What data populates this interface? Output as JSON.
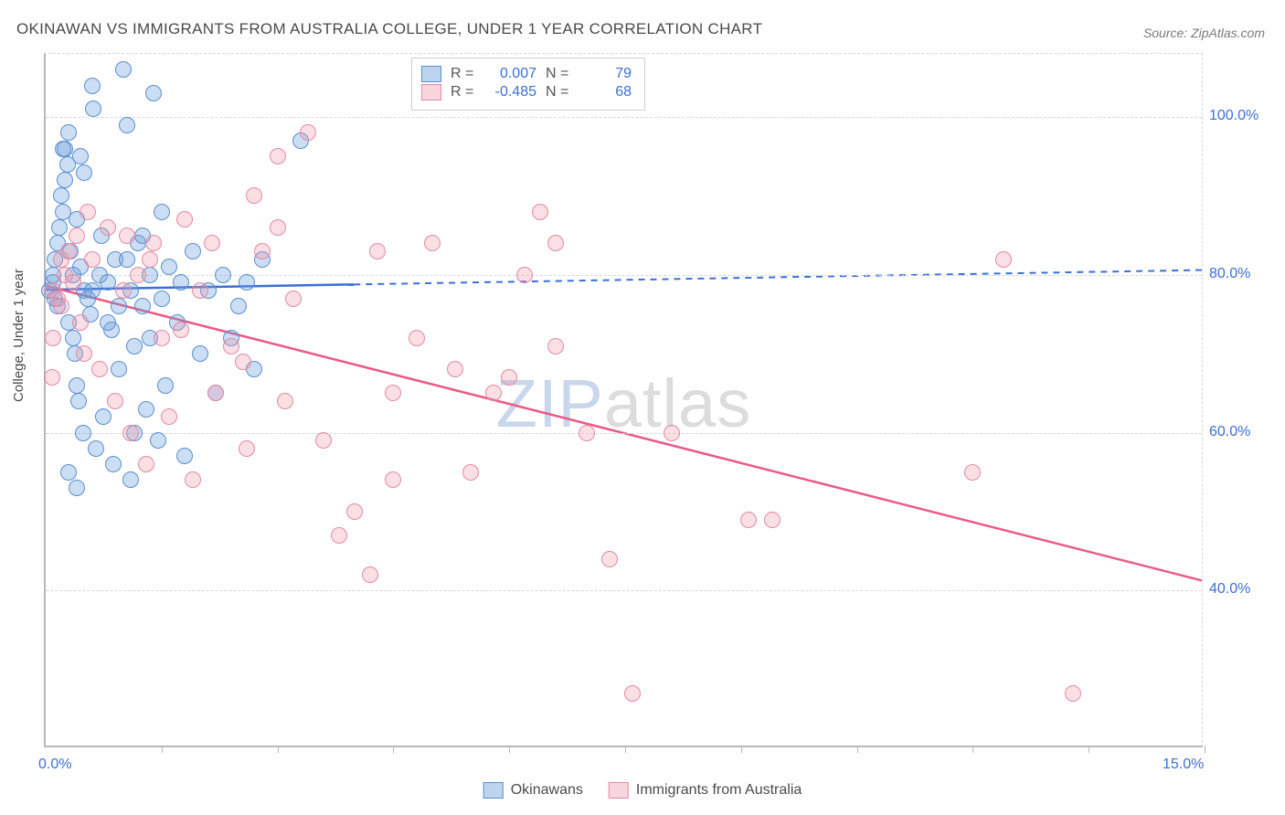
{
  "title": "OKINAWAN VS IMMIGRANTS FROM AUSTRALIA COLLEGE, UNDER 1 YEAR CORRELATION CHART",
  "source": "Source: ZipAtlas.com",
  "ylabel": "College, Under 1 year",
  "watermark_prefix": "ZIP",
  "watermark_suffix": "atlas",
  "chart": {
    "type": "scatter",
    "xlim": [
      0,
      15
    ],
    "ylim": [
      20,
      108
    ],
    "y_ticks": [
      40,
      60,
      80,
      100
    ],
    "y_tick_labels": [
      "40.0%",
      "60.0%",
      "80.0%",
      "100.0%"
    ],
    "x_ticks_minor": [
      1.5,
      3.0,
      4.5,
      6.0,
      7.5,
      9.0,
      10.5,
      12.0,
      13.5,
      15.0
    ],
    "x_tick_labels": {
      "0": "0.0%",
      "15": "15.0%"
    },
    "background_color": "#ffffff",
    "grid_color": "#d8d8d8",
    "axis_color": "#b8b8b8",
    "tick_label_color": "#3b6fd6",
    "series": [
      {
        "name": "Okinawans",
        "marker_color_fill": "rgba(108,160,220,0.35)",
        "marker_color_stroke": "#5a8fd0",
        "trend_color": "#3b6fd6",
        "R": "0.007",
        "N": "79",
        "trend_line": {
          "x1": 0,
          "y1": 78,
          "x2": 15,
          "y2": 80.5,
          "solid_until_x": 4.0
        },
        "points": [
          [
            0.05,
            78
          ],
          [
            0.1,
            79
          ],
          [
            0.1,
            80
          ],
          [
            0.12,
            77
          ],
          [
            0.12,
            82
          ],
          [
            0.15,
            76
          ],
          [
            0.15,
            84
          ],
          [
            0.18,
            86
          ],
          [
            0.2,
            90
          ],
          [
            0.22,
            88
          ],
          [
            0.25,
            92
          ],
          [
            0.25,
            96
          ],
          [
            0.28,
            94
          ],
          [
            0.3,
            98
          ],
          [
            0.3,
            74
          ],
          [
            0.32,
            83
          ],
          [
            0.35,
            72
          ],
          [
            0.38,
            70
          ],
          [
            0.4,
            87
          ],
          [
            0.4,
            66
          ],
          [
            0.42,
            64
          ],
          [
            0.45,
            81
          ],
          [
            0.48,
            60
          ],
          [
            0.5,
            78
          ],
          [
            0.55,
            77
          ],
          [
            0.58,
            75
          ],
          [
            0.6,
            104
          ],
          [
            0.62,
            101
          ],
          [
            0.65,
            58
          ],
          [
            0.7,
            80
          ],
          [
            0.72,
            85
          ],
          [
            0.75,
            62
          ],
          [
            0.8,
            79
          ],
          [
            0.85,
            73
          ],
          [
            0.88,
            56
          ],
          [
            0.9,
            82
          ],
          [
            0.95,
            68
          ],
          [
            1.0,
            106
          ],
          [
            1.05,
            99
          ],
          [
            1.1,
            54
          ],
          [
            1.1,
            78
          ],
          [
            1.15,
            71
          ],
          [
            1.2,
            84
          ],
          [
            1.25,
            76
          ],
          [
            1.3,
            63
          ],
          [
            1.35,
            80
          ],
          [
            1.4,
            103
          ],
          [
            1.45,
            59
          ],
          [
            1.5,
            77
          ],
          [
            1.55,
            66
          ],
          [
            1.6,
            81
          ],
          [
            1.7,
            74
          ],
          [
            1.75,
            79
          ],
          [
            1.8,
            57
          ],
          [
            1.9,
            83
          ],
          [
            2.0,
            70
          ],
          [
            2.1,
            78
          ],
          [
            2.2,
            65
          ],
          [
            2.3,
            80
          ],
          [
            2.4,
            72
          ],
          [
            2.5,
            76
          ],
          [
            2.6,
            79
          ],
          [
            2.7,
            68
          ],
          [
            2.8,
            82
          ],
          [
            0.3,
            55
          ],
          [
            0.4,
            53
          ],
          [
            0.45,
            95
          ],
          [
            0.5,
            93
          ],
          [
            0.22,
            96
          ],
          [
            0.6,
            78
          ],
          [
            0.35,
            80
          ],
          [
            0.8,
            74
          ],
          [
            0.95,
            76
          ],
          [
            1.05,
            82
          ],
          [
            1.15,
            60
          ],
          [
            1.25,
            85
          ],
          [
            1.35,
            72
          ],
          [
            1.5,
            88
          ],
          [
            3.3,
            97
          ]
        ]
      },
      {
        "name": "Immigrants from Australia",
        "marker_color_fill": "rgba(240,150,170,0.30)",
        "marker_color_stroke": "#e48aa4",
        "trend_color": "#ea5a86",
        "R": "-0.485",
        "N": "68",
        "trend_line": {
          "x1": 0,
          "y1": 78.5,
          "x2": 15,
          "y2": 41,
          "solid_until_x": 15.0
        },
        "points": [
          [
            0.1,
            78
          ],
          [
            0.15,
            77
          ],
          [
            0.2,
            76
          ],
          [
            0.25,
            80
          ],
          [
            0.3,
            83
          ],
          [
            0.35,
            79
          ],
          [
            0.1,
            72
          ],
          [
            0.4,
            85
          ],
          [
            0.45,
            74
          ],
          [
            0.5,
            70
          ],
          [
            0.6,
            82
          ],
          [
            0.7,
            68
          ],
          [
            0.8,
            86
          ],
          [
            0.9,
            64
          ],
          [
            1.0,
            78
          ],
          [
            1.1,
            60
          ],
          [
            1.2,
            80
          ],
          [
            1.3,
            56
          ],
          [
            1.4,
            84
          ],
          [
            1.5,
            72
          ],
          [
            1.6,
            62
          ],
          [
            1.8,
            87
          ],
          [
            1.9,
            54
          ],
          [
            2.0,
            78
          ],
          [
            2.2,
            65
          ],
          [
            2.4,
            71
          ],
          [
            2.6,
            58
          ],
          [
            2.7,
            90
          ],
          [
            2.8,
            83
          ],
          [
            3.0,
            95
          ],
          [
            3.0,
            86
          ],
          [
            3.1,
            64
          ],
          [
            3.2,
            77
          ],
          [
            3.4,
            98
          ],
          [
            3.6,
            59
          ],
          [
            3.8,
            47
          ],
          [
            4.0,
            50
          ],
          [
            4.2,
            42
          ],
          [
            4.3,
            83
          ],
          [
            4.5,
            54
          ],
          [
            4.5,
            65
          ],
          [
            4.8,
            72
          ],
          [
            5.0,
            84
          ],
          [
            5.3,
            68
          ],
          [
            5.5,
            55
          ],
          [
            5.8,
            65
          ],
          [
            6.0,
            67
          ],
          [
            6.2,
            80
          ],
          [
            6.4,
            88
          ],
          [
            6.6,
            84
          ],
          [
            6.6,
            71
          ],
          [
            7.0,
            60
          ],
          [
            7.3,
            44
          ],
          [
            7.6,
            27
          ],
          [
            8.1,
            60
          ],
          [
            9.1,
            49
          ],
          [
            9.4,
            49
          ],
          [
            12.0,
            55
          ],
          [
            12.4,
            82
          ],
          [
            13.3,
            27
          ],
          [
            0.08,
            67
          ],
          [
            0.2,
            82
          ],
          [
            0.55,
            88
          ],
          [
            1.05,
            85
          ],
          [
            1.35,
            82
          ],
          [
            1.75,
            73
          ],
          [
            2.15,
            84
          ],
          [
            2.55,
            69
          ]
        ]
      }
    ]
  },
  "legend_stats_labels": {
    "R": "R =",
    "N": "N ="
  }
}
